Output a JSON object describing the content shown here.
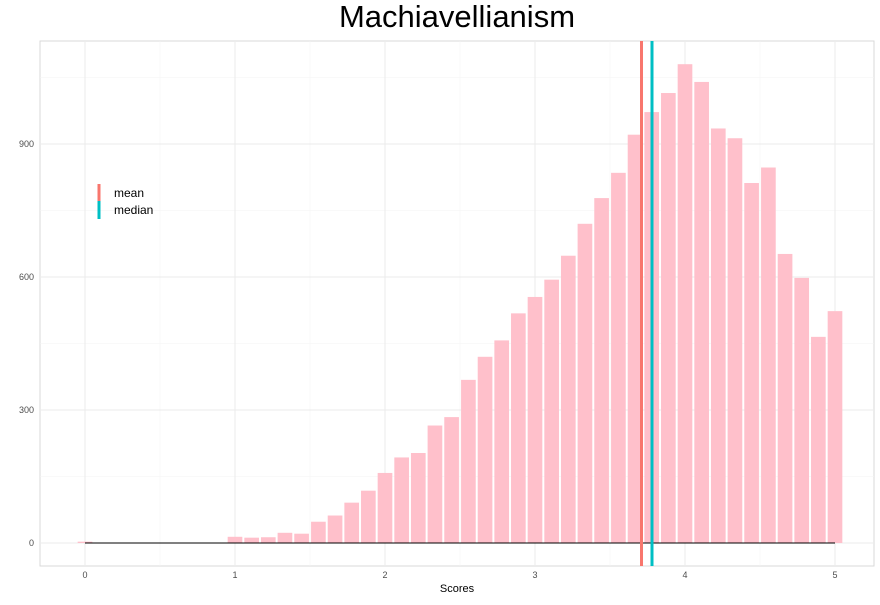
{
  "chart_data": {
    "type": "bar",
    "title": "Machiavellianism",
    "xlabel": "Scores",
    "ylabel": "",
    "xlim": [
      -0.3,
      5.25
    ],
    "ylim": [
      -55,
      1135
    ],
    "bin_width": 0.1111,
    "x_ticks": [
      0,
      1,
      2,
      3,
      4,
      5
    ],
    "y_ticks": [
      0,
      300,
      600,
      900
    ],
    "grid": true,
    "legend_position": "top-left",
    "colors": {
      "bars": "#ffc0cb",
      "mean": "#f8766d",
      "median": "#00bfc4",
      "grid": "#ebebeb",
      "panel_border": "#d9d9d9",
      "baseline": "#000000"
    },
    "series": [
      {
        "x": [
          0.0,
          0.111,
          0.222,
          0.333,
          0.444,
          0.556,
          0.667,
          0.778,
          0.889,
          1.0,
          1.111,
          1.222,
          1.333,
          1.444,
          1.556,
          1.667,
          1.778,
          1.889,
          2.0,
          2.111,
          2.222,
          2.333,
          2.444,
          2.556,
          2.667,
          2.778,
          2.889,
          3.0,
          3.111,
          3.222,
          3.333,
          3.444,
          3.556,
          3.667,
          3.778,
          3.889,
          4.0,
          4.111,
          4.222,
          4.333,
          4.444,
          4.556,
          4.667,
          4.778,
          4.889,
          5.0
        ],
        "values": [
          3,
          0,
          0,
          0,
          0,
          0,
          0,
          0,
          0,
          14,
          12,
          13,
          23,
          21,
          48,
          62,
          91,
          118,
          158,
          193,
          203,
          265,
          284,
          368,
          420,
          457,
          518,
          555,
          594,
          648,
          720,
          778,
          835,
          921,
          972,
          1015,
          1080,
          1040,
          935,
          913,
          812,
          847,
          652,
          598,
          465,
          523
        ]
      }
    ],
    "lines": [
      {
        "name": "mean",
        "x": 3.71
      },
      {
        "name": "median",
        "x": 3.78
      }
    ],
    "legend": [
      "mean",
      "median"
    ]
  }
}
